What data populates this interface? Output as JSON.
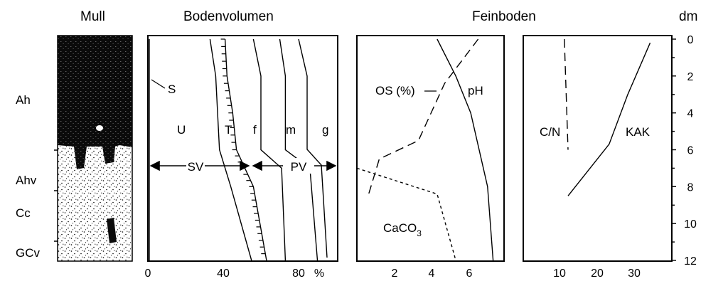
{
  "titles": {
    "mull": "Mull",
    "bodenvolumen": "Bodenvolumen",
    "feinboden": "Feinboden",
    "dm": "dm"
  },
  "horizons": [
    "Ah",
    "Ahv",
    "Cc",
    "GCv"
  ],
  "bodenvolumen": {
    "labels": {
      "S": "S",
      "U": "U",
      "T": "T",
      "f": "f",
      "m": "m",
      "g": "g",
      "SV": "SV",
      "PV": "PV"
    },
    "xticks": [
      "0",
      "40",
      "80"
    ],
    "xunit": "%"
  },
  "feinboden": {
    "labels": {
      "os": "OS (%)",
      "ph": "pH",
      "caco3_main": "CaCO",
      "caco3_sub": "3"
    },
    "xticks": [
      "2",
      "4",
      "6"
    ]
  },
  "kak_panel": {
    "labels": {
      "cn": "C/N",
      "kak": "KAK"
    },
    "xticks": [
      "10",
      "20",
      "30"
    ]
  },
  "depth_ticks": [
    "0",
    "2",
    "4",
    "6",
    "8",
    "10",
    "12"
  ],
  "chart_data": {
    "type": "line",
    "y_axis": {
      "label": "dm",
      "range": [
        0,
        12
      ],
      "inverted": true
    },
    "panels": [
      {
        "name": "Bodenvolumen",
        "x_unit": "%",
        "x_range": [
          0,
          100
        ],
        "series": [
          {
            "name": "S",
            "points": [
              [
                0,
                0
              ],
              [
                0,
                12
              ]
            ]
          },
          {
            "name": "U",
            "points": [
              [
                33,
                0
              ],
              [
                36,
                2
              ],
              [
                38,
                6
              ],
              [
                44,
                8
              ],
              [
                55,
                12
              ]
            ]
          },
          {
            "name": "T",
            "points": [
              [
                41,
                0
              ],
              [
                42,
                2
              ],
              [
                45,
                4
              ],
              [
                47,
                6
              ],
              [
                56,
                8
              ],
              [
                63,
                12
              ]
            ]
          },
          {
            "name": "f",
            "points": [
              [
                56,
                0
              ],
              [
                60,
                2
              ],
              [
                60,
                6
              ],
              [
                71,
                7
              ],
              [
                73,
                12
              ]
            ]
          },
          {
            "name": "m",
            "points": [
              [
                70,
                0
              ],
              [
                73,
                2
              ],
              [
                73,
                6
              ],
              [
                86,
                7
              ],
              [
                90,
                12
              ]
            ]
          }
        ]
      },
      {
        "name": "Feinboden",
        "x_range": [
          0,
          7.5
        ],
        "series": [
          {
            "name": "pH",
            "points": [
              [
                4.3,
                0
              ],
              [
                5.3,
                2
              ],
              [
                6.1,
                4
              ],
              [
                7.0,
                8
              ],
              [
                7.3,
                12
              ]
            ]
          },
          {
            "name": "OS (%)",
            "points": [
              [
                6.5,
                0
              ],
              [
                4.7,
                2.4
              ],
              [
                3.3,
                5.5
              ],
              [
                1.2,
                6.5
              ],
              [
                0.6,
                8.5
              ]
            ]
          },
          {
            "name": "CaCO3",
            "points": [
              [
                0,
                7
              ],
              [
                4.3,
                8.4
              ],
              [
                5.3,
                12
              ]
            ]
          }
        ]
      },
      {
        "name": "C/N, KAK",
        "x_range": [
          0,
          40
        ],
        "series": [
          {
            "name": "C/N",
            "points": [
              [
                11,
                0
              ],
              [
                12,
                6
              ]
            ]
          },
          {
            "name": "KAK",
            "points": [
              [
                34,
                0.2
              ],
              [
                28,
                3
              ],
              [
                23,
                5.7
              ],
              [
                12,
                8.5
              ]
            ]
          }
        ]
      }
    ]
  }
}
